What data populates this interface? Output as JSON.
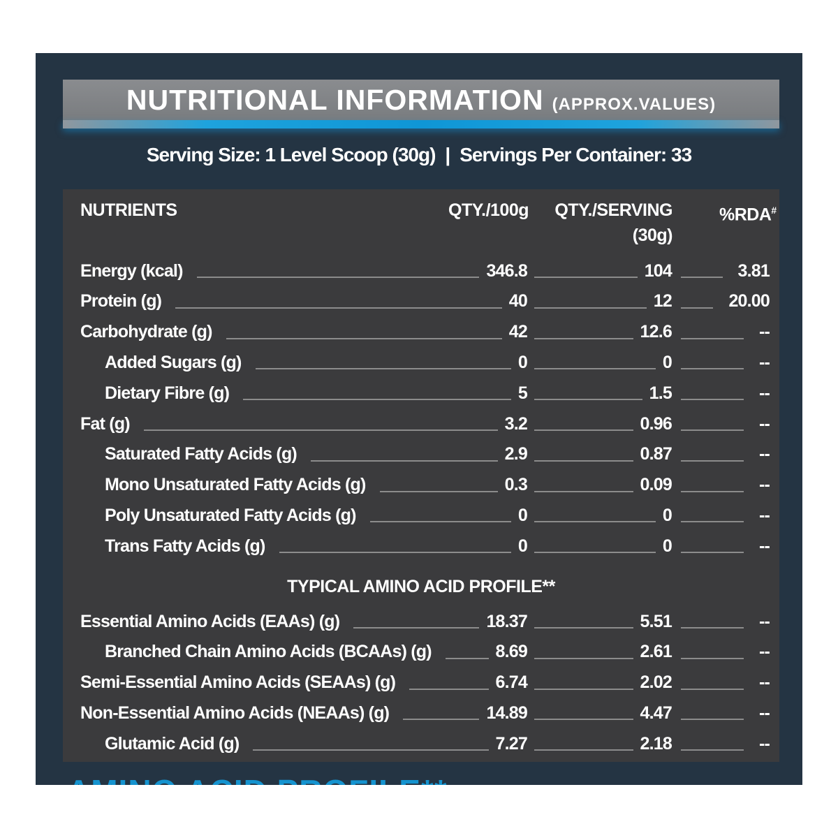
{
  "header": {
    "title": "NUTRITIONAL INFORMATION",
    "subtitle": "(APPROX.VALUES)"
  },
  "serving": {
    "size": "Serving Size: 1 Level Scoop (30g)",
    "separator": "|",
    "per_container": "Servings Per Container: 33"
  },
  "columns": {
    "nutrients": "NUTRIENTS",
    "qty100": "QTY./100g",
    "qty_serving": "QTY./SERVING",
    "qty_serving_sub": "(30g)",
    "rda": "%RDA",
    "rda_mark": "#"
  },
  "rows": [
    {
      "name": "Energy (kcal)",
      "indent": false,
      "qty100": "346.8",
      "serving": "104",
      "rda": "3.81"
    },
    {
      "name": "Protein (g)",
      "indent": false,
      "qty100": "40",
      "serving": "12",
      "rda": "20.00"
    },
    {
      "name": "Carbohydrate (g)",
      "indent": false,
      "qty100": "42",
      "serving": "12.6",
      "rda": "--"
    },
    {
      "name": "Added Sugars (g)",
      "indent": true,
      "qty100": "0",
      "serving": "0",
      "rda": "--"
    },
    {
      "name": "Dietary Fibre (g)",
      "indent": true,
      "qty100": "5",
      "serving": "1.5",
      "rda": "--"
    },
    {
      "name": "Fat (g)",
      "indent": false,
      "qty100": "3.2",
      "serving": "0.96",
      "rda": "--"
    },
    {
      "name": "Saturated Fatty Acids (g)",
      "indent": true,
      "qty100": "2.9",
      "serving": "0.87",
      "rda": "--"
    },
    {
      "name": "Mono Unsaturated Fatty Acids (g)",
      "indent": true,
      "qty100": "0.3",
      "serving": "0.09",
      "rda": "--"
    },
    {
      "name": "Poly Unsaturated Fatty Acids (g)",
      "indent": true,
      "qty100": "0",
      "serving": "0",
      "rda": "--"
    },
    {
      "name": "Trans Fatty Acids (g)",
      "indent": true,
      "qty100": "0",
      "serving": "0",
      "rda": "--"
    }
  ],
  "amino_title": "TYPICAL AMINO ACID PROFILE**",
  "amino_rows": [
    {
      "name": "Essential Amino Acids (EAAs) (g)",
      "indent": false,
      "qty100": "18.37",
      "serving": "5.51",
      "rda": "--"
    },
    {
      "name": "Branched Chain Amino Acids (BCAAs) (g)",
      "indent": true,
      "qty100": "8.69",
      "serving": "2.61",
      "rda": "--"
    },
    {
      "name": "Semi-Essential Amino Acids (SEAAs) (g)",
      "indent": false,
      "qty100": "6.74",
      "serving": "2.02",
      "rda": "--"
    },
    {
      "name": "Non-Essential Amino Acids (NEAAs) (g)",
      "indent": false,
      "qty100": "14.89",
      "serving": "4.47",
      "rda": "--"
    },
    {
      "name": "Glutamic Acid (g)",
      "indent": true,
      "qty100": "7.27",
      "serving": "2.18",
      "rda": "--"
    }
  ],
  "footer_cut": "AMINO ACID PROFILE**",
  "colors": {
    "panel": "#243443",
    "table": "#3b3b3d",
    "accent": "#1593cf"
  }
}
